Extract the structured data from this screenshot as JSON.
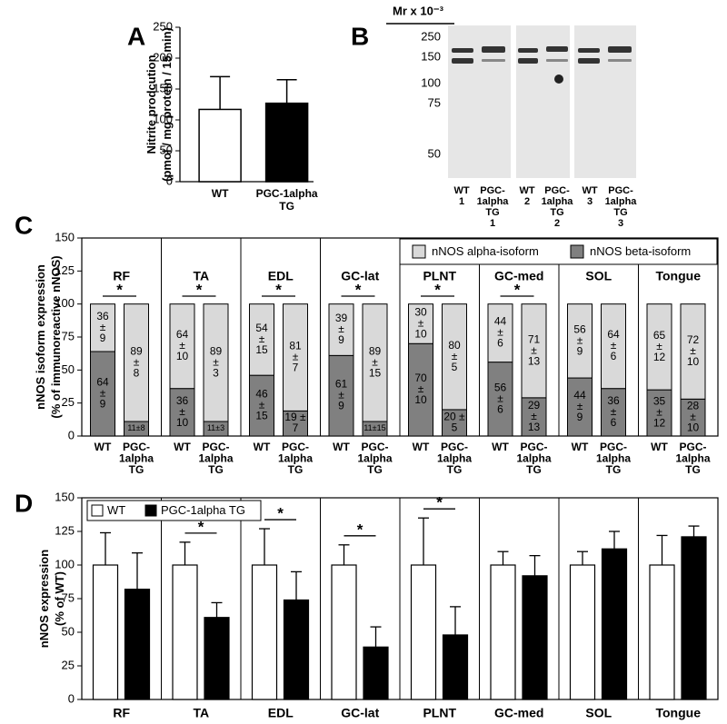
{
  "panels": {
    "a": "A",
    "b": "B",
    "c": "C",
    "d": "D"
  },
  "blot": {
    "marker_title": "Mr x 10⁻³",
    "markers": [
      "250",
      "150",
      "100",
      "75",
      "50"
    ],
    "lanes": [
      [
        "WT",
        "1"
      ],
      [
        "PGC-",
        "1alpha",
        "TG",
        "1"
      ],
      [
        "WT",
        "2"
      ],
      [
        "PGC-",
        "1alpha",
        "TG",
        "2"
      ],
      [
        "WT",
        "3"
      ],
      [
        "PGC-",
        "1alpha",
        "TG",
        "3"
      ]
    ]
  },
  "chart_data": [
    {
      "type": "bar",
      "ylabel": [
        "Nitrite prodcution",
        "(pmol / mg protein / 15 min)"
      ],
      "categories": [
        [
          "WT"
        ],
        [
          "PGC-1alpha",
          "TG"
        ]
      ],
      "values": [
        117,
        127
      ],
      "errors": [
        53,
        38
      ],
      "colors": [
        "#ffffff",
        "#000000"
      ],
      "ylim": [
        0,
        250
      ],
      "yticks": [
        0,
        50,
        100,
        150,
        200,
        250
      ]
    },
    {
      "type": "stacked-bar",
      "ylabel": [
        "nNOS isoform expression",
        "(% of immunoreactive nNOS)"
      ],
      "groups": [
        "RF",
        "TA",
        "EDL",
        "GC-lat",
        "PLNT",
        "GC-med",
        "SOL",
        "Tongue"
      ],
      "bars": [
        [
          "WT"
        ],
        [
          "PGC-",
          "1alpha",
          "TG"
        ]
      ],
      "significance": [
        "*",
        "*",
        "*",
        "*",
        "*",
        "*",
        null,
        null
      ],
      "ylim": [
        0,
        150
      ],
      "yticks": [
        0,
        25,
        50,
        75,
        100,
        125,
        150
      ],
      "series": [
        {
          "name": "nNOS alpha-isoform",
          "color": "#d9d9d9",
          "values": [
            [
              36,
              89
            ],
            [
              64,
              89
            ],
            [
              54,
              81
            ],
            [
              39,
              89
            ],
            [
              30,
              80
            ],
            [
              44,
              71
            ],
            [
              56,
              64
            ],
            [
              65,
              72
            ]
          ],
          "value_labels": [
            [
              [
                "36",
                "±",
                "9"
              ],
              [
                "89",
                "±",
                "8"
              ]
            ],
            [
              [
                "64",
                "±",
                "10"
              ],
              [
                "89",
                "±",
                "3"
              ]
            ],
            [
              [
                "54",
                "±",
                "15"
              ],
              [
                "81",
                "±",
                "7"
              ]
            ],
            [
              [
                "39",
                "±",
                "9"
              ],
              [
                "89",
                "±",
                "15"
              ]
            ],
            [
              [
                "30",
                "±",
                "10"
              ],
              [
                "80",
                "±",
                "5"
              ]
            ],
            [
              [
                "44",
                "±",
                "6"
              ],
              [
                "71",
                "±",
                "13"
              ]
            ],
            [
              [
                "56",
                "±",
                "9"
              ],
              [
                "64",
                "±",
                "6"
              ]
            ],
            [
              [
                "65",
                "±",
                "12"
              ],
              [
                "72",
                "±",
                "10"
              ]
            ]
          ]
        },
        {
          "name": "nNOS beta-isoform",
          "color": "#808080",
          "values": [
            [
              64,
              11
            ],
            [
              36,
              11
            ],
            [
              46,
              19
            ],
            [
              61,
              11
            ],
            [
              70,
              20
            ],
            [
              56,
              29
            ],
            [
              44,
              36
            ],
            [
              35,
              28
            ]
          ],
          "value_labels": [
            [
              [
                "64",
                "±",
                "9"
              ],
              [
                "11±8"
              ]
            ],
            [
              [
                "36",
                "±",
                "10"
              ],
              [
                "11±3"
              ]
            ],
            [
              [
                "46",
                "±",
                "15"
              ],
              [
                "19 ±",
                "7"
              ]
            ],
            [
              [
                "61",
                "±",
                "9"
              ],
              [
                "11±15"
              ]
            ],
            [
              [
                "70",
                "±",
                "10"
              ],
              [
                "20 ±",
                "5"
              ]
            ],
            [
              [
                "56",
                "±",
                "6"
              ],
              [
                "29",
                "±",
                "13"
              ]
            ],
            [
              [
                "44",
                "±",
                "9"
              ],
              [
                "36",
                "±",
                "6"
              ]
            ],
            [
              [
                "35",
                "±",
                "12"
              ],
              [
                "28",
                "±",
                "10"
              ]
            ]
          ]
        }
      ]
    },
    {
      "type": "grouped-bar",
      "ylabel": [
        "nNOS expression",
        "(% of WT)"
      ],
      "categories": [
        "RF",
        "TA",
        "EDL",
        "GC-lat",
        "PLNT",
        "GC-med",
        "SOL",
        "Tongue"
      ],
      "significance": [
        null,
        "*",
        "*",
        "*",
        "*",
        null,
        null,
        null
      ],
      "ylim": [
        0,
        150
      ],
      "yticks": [
        0,
        25,
        50,
        75,
        100,
        125,
        150
      ],
      "series": [
        {
          "name": "WT",
          "color": "#ffffff",
          "values": [
            100,
            100,
            100,
            100,
            100,
            100,
            100,
            100
          ],
          "errors": [
            24,
            17,
            27,
            15,
            35,
            10,
            10,
            22
          ]
        },
        {
          "name": "PGC-1alpha TG",
          "color": "#000000",
          "values": [
            82,
            61,
            74,
            39,
            48,
            92,
            112,
            121
          ],
          "errors": [
            27,
            11,
            21,
            15,
            21,
            15,
            13,
            8
          ]
        }
      ]
    }
  ]
}
